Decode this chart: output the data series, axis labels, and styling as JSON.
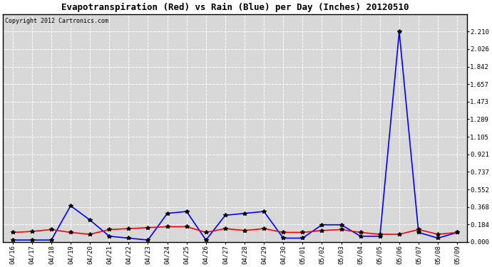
{
  "title": "Evapotranspiration (Red) vs Rain (Blue) per Day (Inches) 20120510",
  "copyright": "Copyright 2012 Cartronics.com",
  "dates": [
    "04/16",
    "04/17",
    "04/18",
    "04/19",
    "04/20",
    "04/21",
    "04/22",
    "04/23",
    "04/24",
    "04/25",
    "04/26",
    "04/27",
    "04/28",
    "04/29",
    "04/30",
    "05/01",
    "05/02",
    "05/03",
    "05/04",
    "05/05",
    "05/06",
    "05/07",
    "05/08",
    "05/09"
  ],
  "rain": [
    0.02,
    0.02,
    0.02,
    0.38,
    0.23,
    0.06,
    0.04,
    0.02,
    0.3,
    0.32,
    0.02,
    0.28,
    0.3,
    0.32,
    0.04,
    0.04,
    0.18,
    0.18,
    0.06,
    0.06,
    2.21,
    0.1,
    0.04,
    0.1
  ],
  "et": [
    0.1,
    0.11,
    0.13,
    0.1,
    0.08,
    0.13,
    0.14,
    0.15,
    0.16,
    0.16,
    0.1,
    0.14,
    0.12,
    0.14,
    0.1,
    0.1,
    0.12,
    0.13,
    0.1,
    0.08,
    0.08,
    0.13,
    0.08,
    0.1
  ],
  "rain_color": "blue",
  "et_color": "red",
  "marker": "*",
  "marker_color": "black",
  "marker_size": 4,
  "linewidth": 1.2,
  "ylim": [
    0.0,
    2.394
  ],
  "yticks": [
    0.0,
    0.184,
    0.368,
    0.552,
    0.737,
    0.921,
    1.105,
    1.289,
    1.473,
    1.657,
    1.842,
    2.026,
    2.21
  ],
  "plot_bg": "#d8d8d8",
  "fig_bg": "#ffffff",
  "grid_color": "#ffffff",
  "title_fontsize": 9,
  "tick_fontsize": 6.5,
  "copyright_fontsize": 6
}
